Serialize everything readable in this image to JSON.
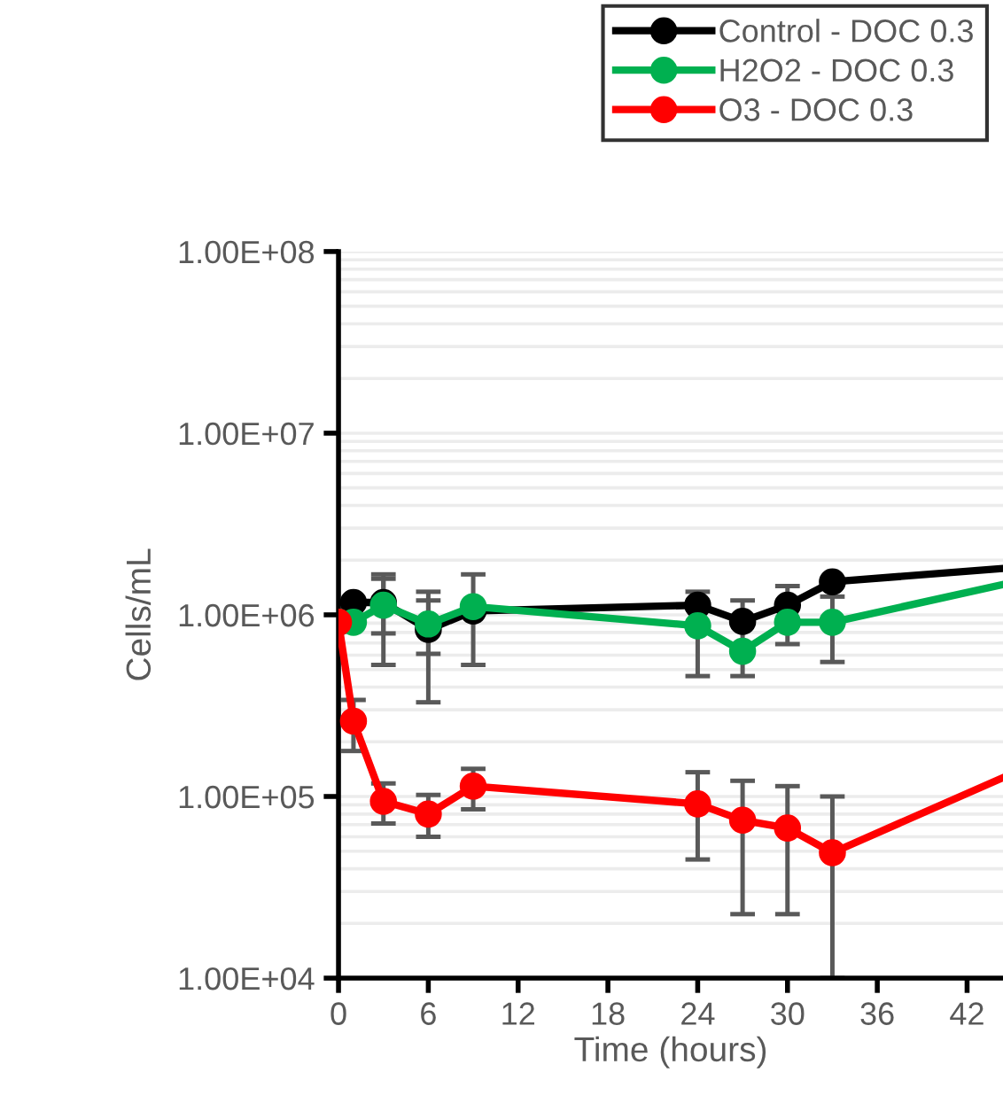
{
  "chart_data": {
    "type": "line",
    "xlabel": "Time (hours)",
    "ylabel": "Cells/mL",
    "log": "y",
    "grid": "y",
    "legend": "top",
    "marker": "circle",
    "line_style": "solid",
    "xlim": [
      0,
      44.4
    ],
    "xticks": [
      0,
      6,
      12,
      18,
      24,
      30,
      36,
      42
    ],
    "ylim": [
      10000,
      100000000
    ],
    "yticks": [
      {
        "value": 10000,
        "label": "1.00E+04"
      },
      {
        "value": 100000,
        "label": "1.00E+05"
      },
      {
        "value": 1000000,
        "label": "1.00E+06"
      },
      {
        "value": 10000000,
        "label": "1.00E+07"
      },
      {
        "value": 100000000,
        "label": "1.00E+08"
      }
    ],
    "series": [
      {
        "name": "Control - DOC 0.3",
        "color": "#000000",
        "x": [
          0,
          1,
          3,
          6,
          9,
          24,
          27,
          30,
          33,
          44.4
        ],
        "values": [
          910000,
          1170000,
          1170000,
          830000,
          1050000,
          1130000,
          920000,
          1130000,
          1520000,
          1800000
        ],
        "errors": [
          null,
          null,
          [
            530000,
            1670000
          ],
          [
            330000,
            1340000
          ],
          [
            530000,
            1670000
          ],
          null,
          null,
          null,
          null,
          null
        ]
      },
      {
        "name": "H2O2 - DOC 0.3",
        "color": "#00b050",
        "x": [
          0,
          1,
          3,
          6,
          9,
          24,
          27,
          30,
          33,
          44.4
        ],
        "values": [
          910000,
          910000,
          1130000,
          890000,
          1110000,
          870000,
          630000,
          910000,
          910000,
          1470000
        ],
        "errors": [
          null,
          null,
          [
            790000,
            1580000
          ],
          [
            610000,
            1200000
          ],
          null,
          [
            460000,
            1340000
          ],
          [
            460000,
            1200000
          ],
          [
            690000,
            1440000
          ],
          [
            550000,
            1260000
          ],
          null
        ]
      },
      {
        "name": "O3 - DOC 0.3",
        "color": "#ff0000",
        "x": [
          0,
          1,
          3,
          6,
          9,
          24,
          27,
          30,
          33,
          44.4
        ],
        "values": [
          910000,
          260000,
          94000,
          80000,
          114000,
          91000,
          74000,
          67000,
          49000,
          127000
        ],
        "errors": [
          null,
          [
            178000,
            340000
          ],
          [
            71000,
            118000
          ],
          [
            60000,
            102000
          ],
          [
            85000,
            142000
          ],
          [
            45000,
            136000
          ],
          [
            22500,
            122000
          ],
          [
            22500,
            114000
          ],
          [
            10000,
            100000
          ],
          null
        ]
      }
    ]
  }
}
